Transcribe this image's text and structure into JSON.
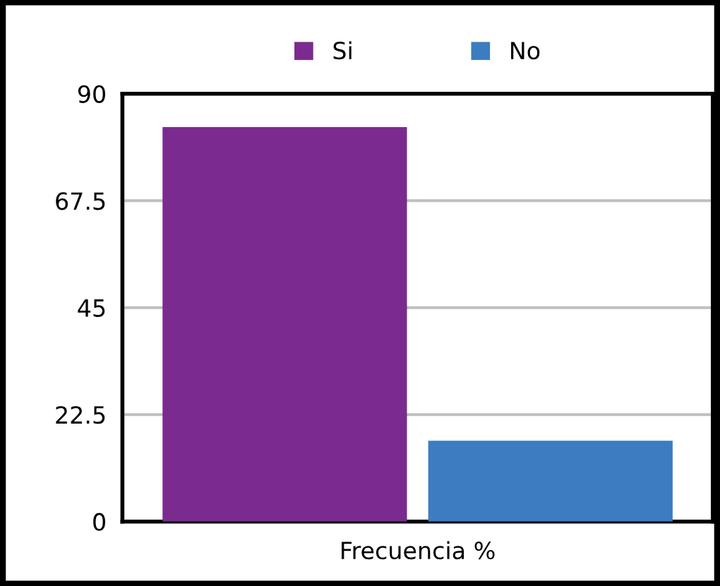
{
  "chart_data": {
    "type": "bar",
    "categories": [
      "Frecuencia %"
    ],
    "series": [
      {
        "name": "Si",
        "color": "#7b2a90",
        "values": [
          83
        ]
      },
      {
        "name": "No",
        "color": "#3d7cc0",
        "values": [
          17
        ]
      }
    ],
    "ylim": [
      0,
      90
    ],
    "yticks": [
      0,
      22.5,
      45,
      67.5,
      90
    ],
    "grid": "y",
    "legend": "top"
  }
}
